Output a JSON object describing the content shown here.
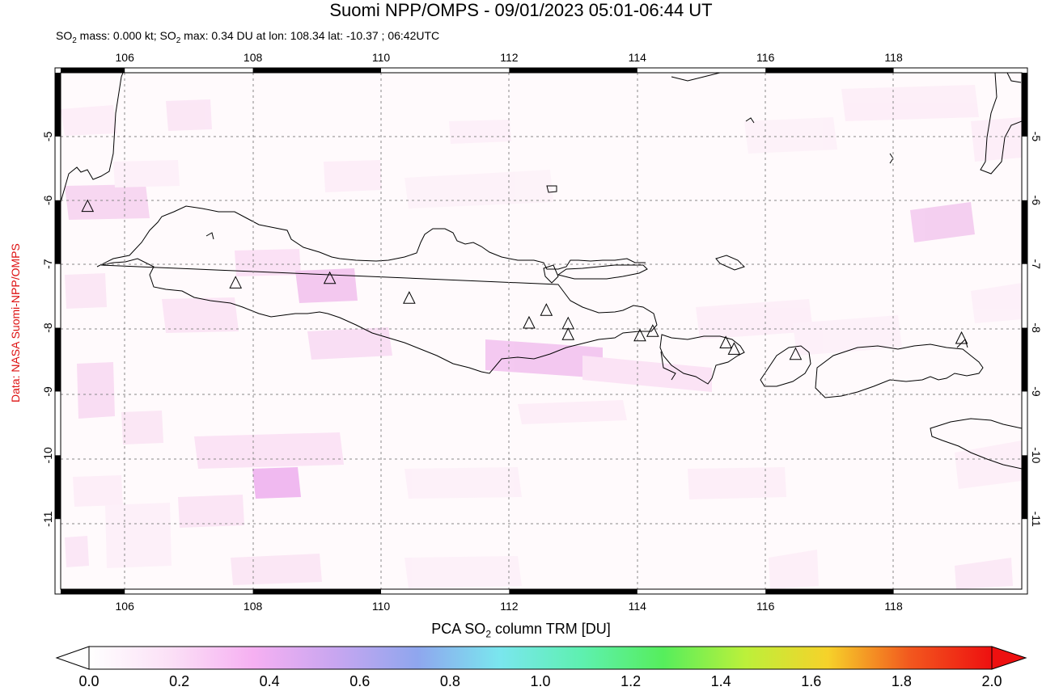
{
  "header": {
    "title": "Suomi NPP/OMPS - 09/01/2023 05:01-06:44 UT",
    "subtitle_parts": [
      "SO",
      "2",
      " mass: 0.000 kt; SO",
      "2",
      " max: 0.34 DU at lon: 108.34 lat: -10.37 ; 06:42UTC"
    ]
  },
  "credit": "Data: NASA Suomi-NPP/OMPS",
  "map": {
    "lon_range": [
      105,
      120
    ],
    "lat_range": [
      -12.1,
      -4.0
    ],
    "lon_ticks": [
      "106",
      "108",
      "110",
      "112",
      "114",
      "116",
      "118"
    ],
    "lat_ticks": [
      "-5",
      "-6",
      "-7",
      "-8",
      "-9",
      "-10",
      "-11"
    ],
    "grid": "dashed",
    "coastline_color": "#000000",
    "volcanoes": [
      {
        "lon": 105.42,
        "lat": -6.1
      },
      {
        "lon": 107.73,
        "lat": -7.3
      },
      {
        "lon": 109.2,
        "lat": -7.23
      },
      {
        "lon": 110.44,
        "lat": -7.54
      },
      {
        "lon": 112.31,
        "lat": -7.93
      },
      {
        "lon": 112.58,
        "lat": -7.73
      },
      {
        "lon": 112.92,
        "lat": -7.94
      },
      {
        "lon": 112.92,
        "lat": -8.11
      },
      {
        "lon": 114.04,
        "lat": -8.13
      },
      {
        "lon": 114.24,
        "lat": -8.06
      },
      {
        "lon": 115.38,
        "lat": -8.24
      },
      {
        "lon": 115.51,
        "lat": -8.34
      },
      {
        "lon": 116.47,
        "lat": -8.42
      },
      {
        "lon": 119.06,
        "lat": -8.17
      }
    ]
  },
  "colorbar": {
    "title_parts": [
      "PCA SO",
      "2",
      " column TRM [DU]"
    ],
    "min": 0.0,
    "max": 2.0,
    "tick_labels": [
      "0.0",
      "0.2",
      "0.4",
      "0.6",
      "0.8",
      "1.0",
      "1.2",
      "1.4",
      "1.6",
      "1.8",
      "2.0"
    ],
    "colors": [
      "#ffffff",
      "#fbe0f6",
      "#f6b0f2",
      "#c8a6f0",
      "#8fa6ee",
      "#7ae6ee",
      "#5ef0b0",
      "#56ee5c",
      "#bcf03a",
      "#f6d22a",
      "#f2581e",
      "#ee1010"
    ]
  }
}
